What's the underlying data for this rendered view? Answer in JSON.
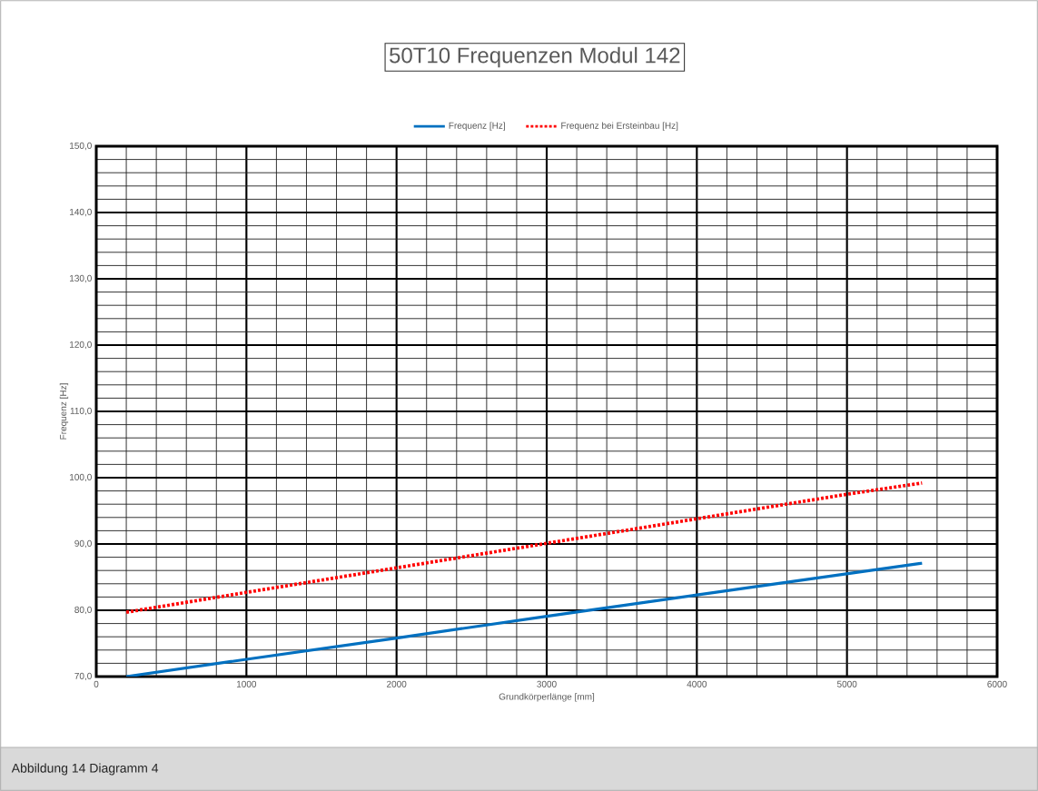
{
  "chart_data": {
    "type": "line",
    "title": "50T10  Frequenzen Modul 142",
    "xlabel": "Grundkörperlänge [mm]",
    "ylabel": "Frequenz [Hz]",
    "x": [
      200,
      1000,
      2000,
      3000,
      4000,
      5000,
      5500
    ],
    "series": [
      {
        "name": "Frequenz [Hz]",
        "color": "#0070c0",
        "line_style": "solid",
        "values": [
          70.0,
          72.6,
          75.8,
          79.1,
          82.3,
          85.5,
          87.1
        ]
      },
      {
        "name": "Frequenz bei Ersteinbau [Hz]",
        "color": "#ff0000",
        "line_style": "dotted",
        "values": [
          79.7,
          82.7,
          86.4,
          90.1,
          93.8,
          97.5,
          99.2
        ]
      }
    ],
    "xlim": [
      0,
      6000
    ],
    "ylim": [
      70,
      150
    ],
    "xticks": [
      0,
      1000,
      2000,
      3000,
      4000,
      5000,
      6000
    ],
    "yticks": [
      {
        "value": 70,
        "label": "70,0"
      },
      {
        "value": 80,
        "label": "80,0"
      },
      {
        "value": 90,
        "label": "90,0"
      },
      {
        "value": 100,
        "label": "100,0"
      },
      {
        "value": 110,
        "label": "110,0"
      },
      {
        "value": 120,
        "label": "120,0"
      },
      {
        "value": 130,
        "label": "130,0"
      },
      {
        "value": 140,
        "label": "140,0"
      },
      {
        "value": 150,
        "label": "150,0"
      }
    ],
    "grid": true,
    "legend": "top",
    "marker": "none",
    "annotations": [
      "Abbildung 14   Diagramm 4"
    ]
  }
}
